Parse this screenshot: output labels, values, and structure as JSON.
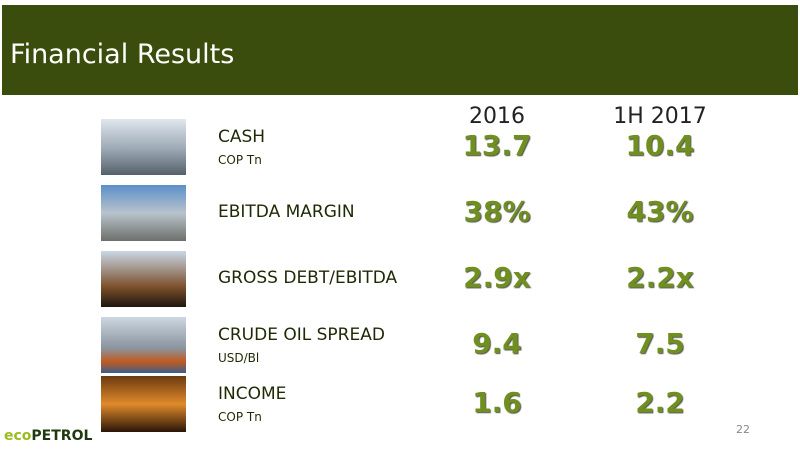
{
  "header": {
    "title": "Financial Results"
  },
  "table": {
    "columns": [
      "2016",
      "1H 2017"
    ],
    "rows": [
      {
        "label": "CASH",
        "unit": "COP Tn",
        "values": [
          "13.7",
          "10.4"
        ]
      },
      {
        "label": "EBITDA MARGIN",
        "values": [
          "38%",
          "43%"
        ]
      },
      {
        "label": "GROSS DEBT/EBITDA",
        "values": [
          "2.9x",
          "2.2x"
        ]
      },
      {
        "label": "CRUDE OIL SPREAD",
        "unit": "USD/Bl",
        "values": [
          "9.4",
          "7.5"
        ]
      },
      {
        "label": "INCOME",
        "unit": "COP Tn",
        "values": [
          "1.6",
          "2.2"
        ]
      }
    ]
  },
  "footer": {
    "logo": [
      "eco",
      "PETROL"
    ],
    "page_number": "22"
  }
}
